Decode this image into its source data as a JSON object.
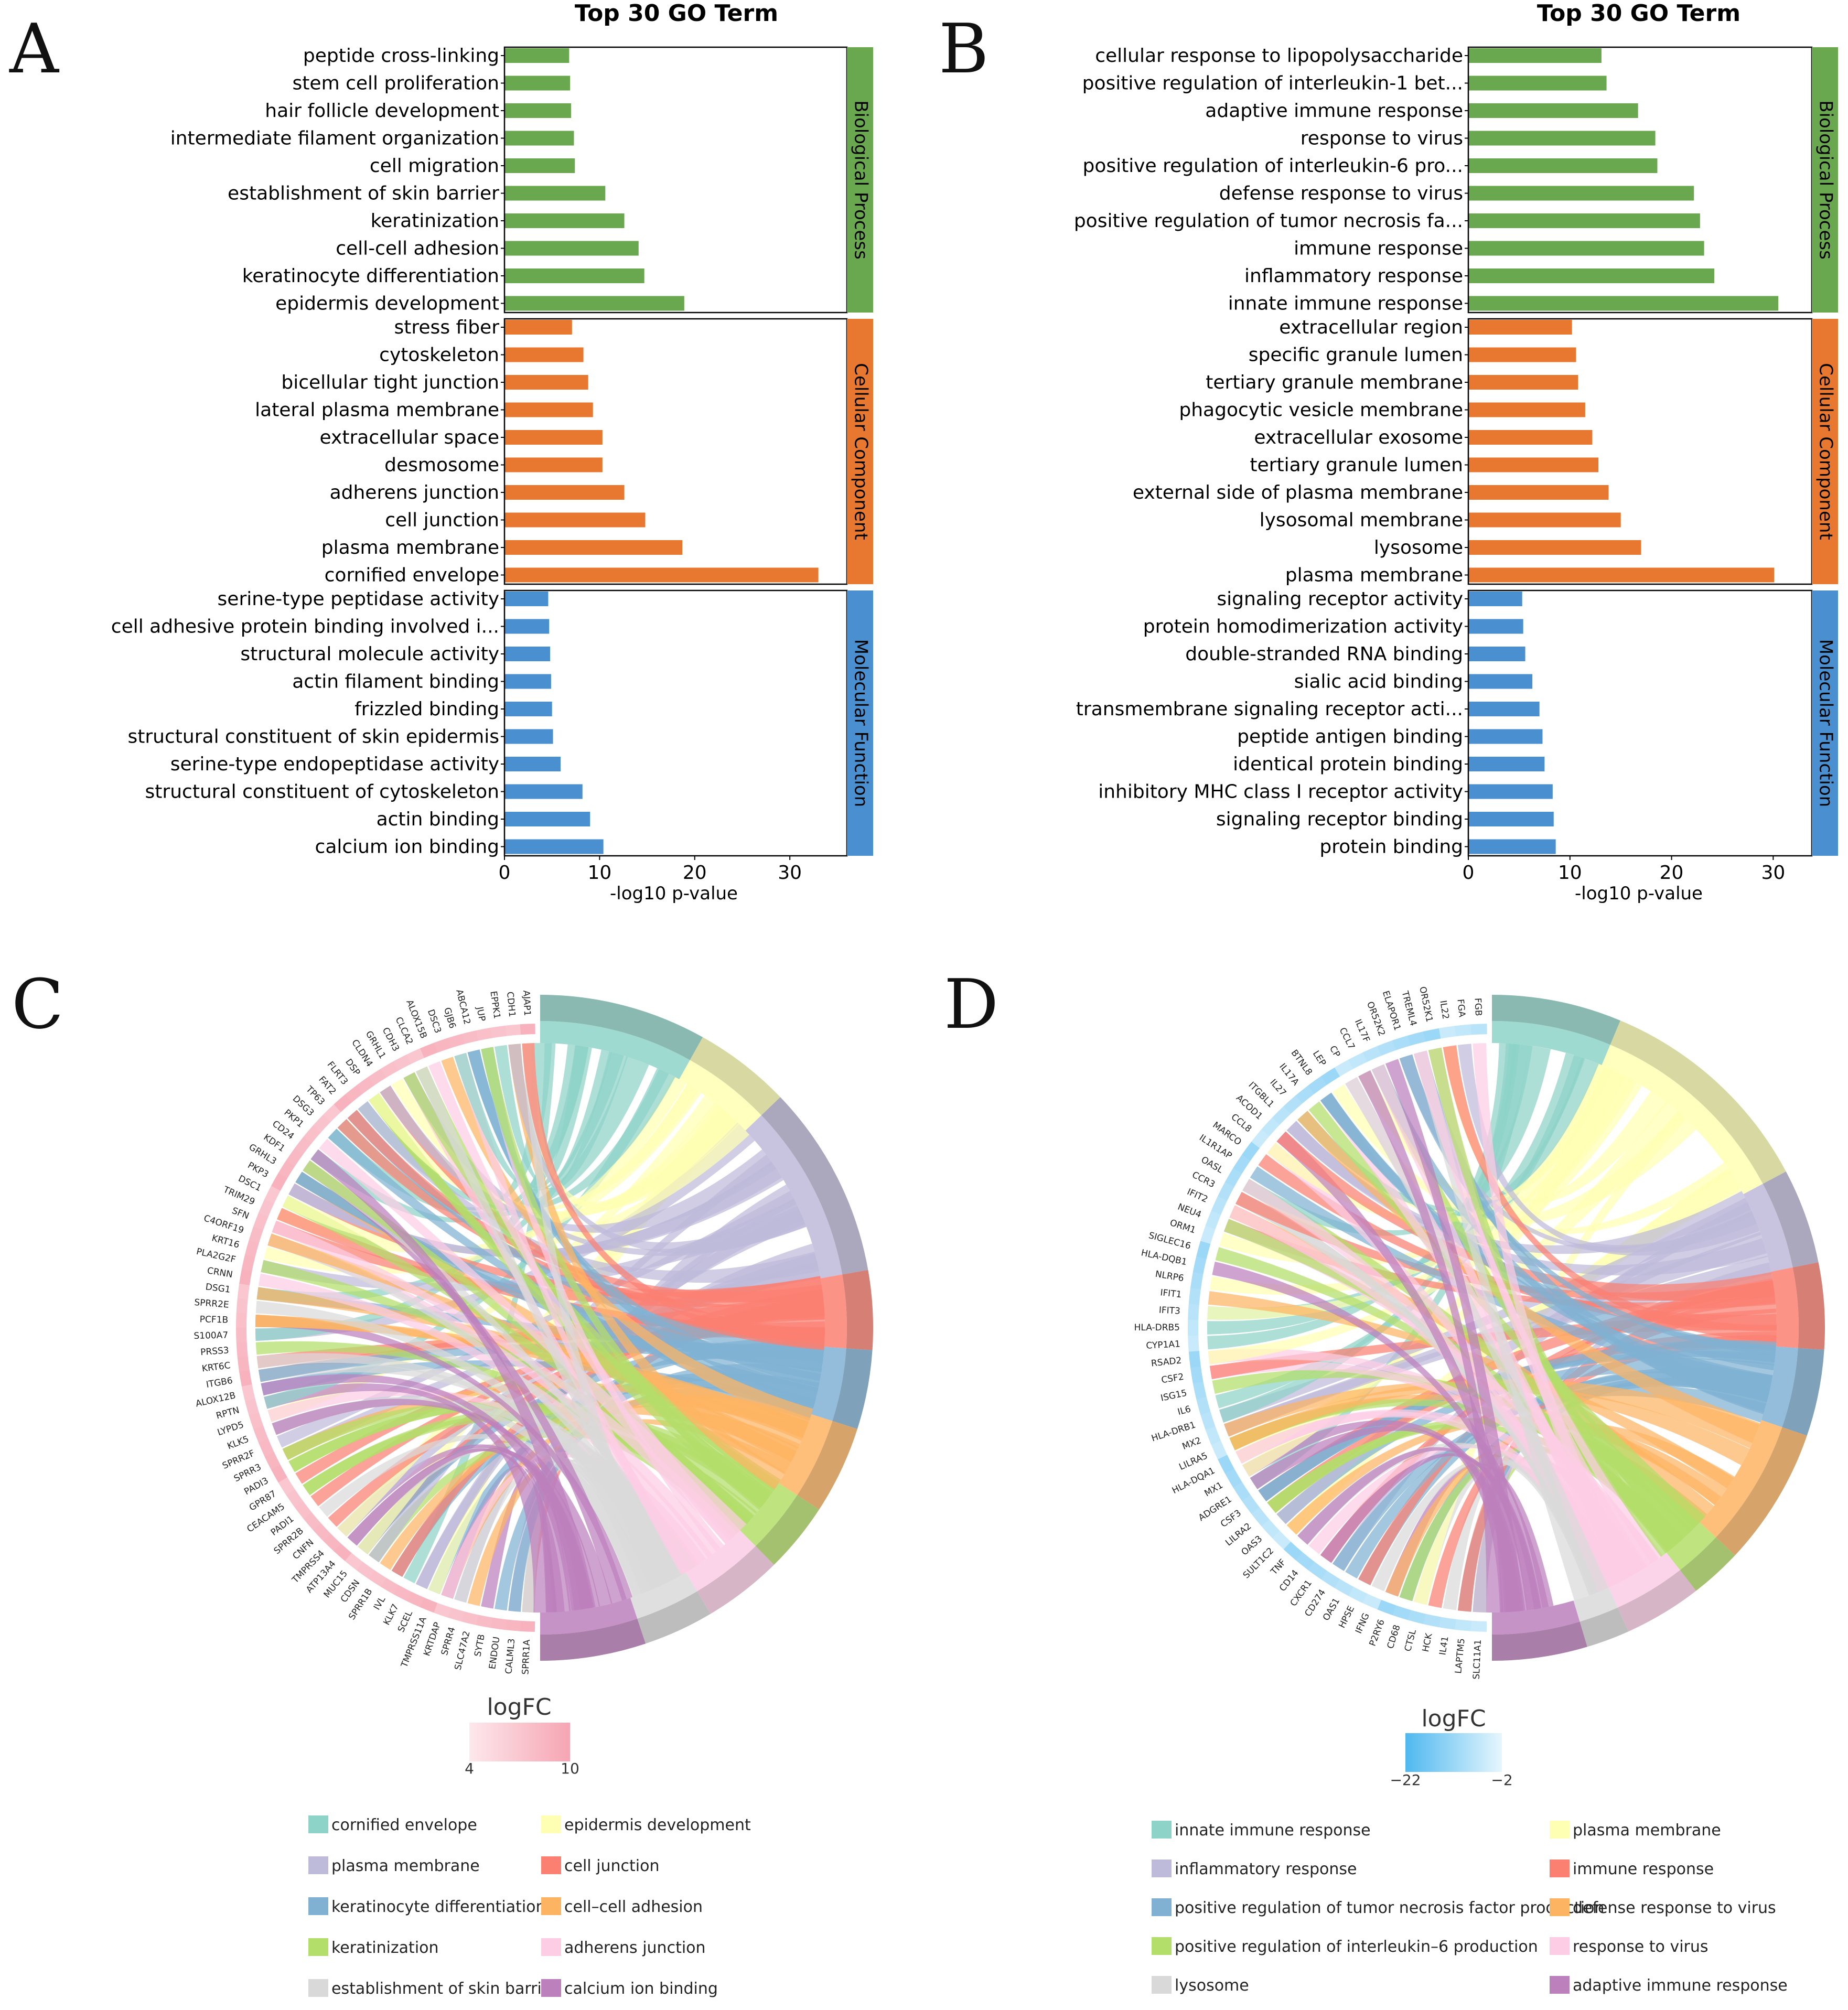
{
  "panel_labels": [
    "A",
    "B",
    "C",
    "D"
  ],
  "chart_data": [
    {
      "id": "A",
      "type": "bar",
      "orientation": "horizontal",
      "title": "Top 30 GO Term",
      "xlabel": "-log10 p-value",
      "xlim": [
        0,
        36
      ],
      "xticks": [
        0,
        10,
        20,
        30
      ],
      "colors": {
        "Biological Process": "#6aa84f",
        "Cellular Component": "#e8782f",
        "Molecular Function": "#4a8fd0"
      },
      "groups": [
        {
          "name": "Biological Process",
          "terms": [
            {
              "term": "peptide cross-linking",
              "value": 6.8
            },
            {
              "term": "stem cell proliferation",
              "value": 6.9
            },
            {
              "term": "hair follicle development",
              "value": 7.0
            },
            {
              "term": "intermediate filament organization",
              "value": 7.3
            },
            {
              "term": "cell migration",
              "value": 7.4
            },
            {
              "term": "establishment of skin barrier",
              "value": 10.6
            },
            {
              "term": "keratinization",
              "value": 12.6
            },
            {
              "term": "cell-cell adhesion",
              "value": 14.1
            },
            {
              "term": "keratinocyte differentiation",
              "value": 14.7
            },
            {
              "term": "epidermis development",
              "value": 18.9
            }
          ]
        },
        {
          "name": "Cellular Component",
          "terms": [
            {
              "term": "stress fiber",
              "value": 7.1
            },
            {
              "term": "cytoskeleton",
              "value": 8.3
            },
            {
              "term": "bicellular tight junction",
              "value": 8.8
            },
            {
              "term": "lateral plasma membrane",
              "value": 9.3
            },
            {
              "term": "extracellular space",
              "value": 10.3
            },
            {
              "term": "desmosome",
              "value": 10.3
            },
            {
              "term": "adherens junction",
              "value": 12.6
            },
            {
              "term": "cell junction",
              "value": 14.8
            },
            {
              "term": "plasma membrane",
              "value": 18.7
            },
            {
              "term": "cornified envelope",
              "value": 33.0
            }
          ]
        },
        {
          "name": "Molecular Function",
          "terms": [
            {
              "term": "serine-type peptidase activity",
              "value": 4.6
            },
            {
              "term": "cell adhesive protein binding involved i...",
              "value": 4.7
            },
            {
              "term": "structural molecule activity",
              "value": 4.8
            },
            {
              "term": "actin filament binding",
              "value": 4.9
            },
            {
              "term": "frizzled binding",
              "value": 5.0
            },
            {
              "term": "structural constituent of skin epidermis",
              "value": 5.1
            },
            {
              "term": "serine-type endopeptidase activity",
              "value": 5.9
            },
            {
              "term": "structural constituent of cytoskeleton",
              "value": 8.2
            },
            {
              "term": "actin binding",
              "value": 9.0
            },
            {
              "term": "calcium ion binding",
              "value": 10.4
            }
          ]
        }
      ]
    },
    {
      "id": "B",
      "type": "bar",
      "orientation": "horizontal",
      "title": "Top 30 GO Term",
      "xlabel": "-log10 p-value",
      "xlim": [
        0,
        33.8
      ],
      "xticks": [
        0,
        10,
        20,
        30
      ],
      "colors": {
        "Biological Process": "#6aa84f",
        "Cellular Component": "#e8782f",
        "Molecular Function": "#4a8fd0"
      },
      "groups": [
        {
          "name": "Biological Process",
          "terms": [
            {
              "term": "cellular response to lipopolysaccharide",
              "value": 13.1
            },
            {
              "term": "positive regulation of interleukin-1 bet...",
              "value": 13.6
            },
            {
              "term": "adaptive immune response",
              "value": 16.7
            },
            {
              "term": "response to virus",
              "value": 18.4
            },
            {
              "term": "positive regulation of interleukin-6 pro...",
              "value": 18.6
            },
            {
              "term": "defense response to virus",
              "value": 22.2
            },
            {
              "term": "positive regulation of tumor necrosis fa...",
              "value": 22.8
            },
            {
              "term": "immune response",
              "value": 23.2
            },
            {
              "term": "inflammatory response",
              "value": 24.2
            },
            {
              "term": "innate immune response",
              "value": 30.5
            }
          ]
        },
        {
          "name": "Cellular Component",
          "terms": [
            {
              "term": "extracellular region",
              "value": 10.2
            },
            {
              "term": "specific granule lumen",
              "value": 10.6
            },
            {
              "term": "tertiary granule membrane",
              "value": 10.8
            },
            {
              "term": "phagocytic vesicle membrane",
              "value": 11.5
            },
            {
              "term": "extracellular exosome",
              "value": 12.2
            },
            {
              "term": "tertiary granule lumen",
              "value": 12.8
            },
            {
              "term": "external side of plasma membrane",
              "value": 13.8
            },
            {
              "term": "lysosomal membrane",
              "value": 15.0
            },
            {
              "term": "lysosome",
              "value": 17.0
            },
            {
              "term": "plasma membrane",
              "value": 30.1
            }
          ]
        },
        {
          "name": "Molecular Function",
          "terms": [
            {
              "term": "signaling receptor activity",
              "value": 5.3
            },
            {
              "term": "protein homodimerization activity",
              "value": 5.4
            },
            {
              "term": "double-stranded RNA binding",
              "value": 5.6
            },
            {
              "term": "sialic acid binding",
              "value": 6.3
            },
            {
              "term": "transmembrane signaling receptor acti...",
              "value": 7.0
            },
            {
              "term": "peptide antigen binding",
              "value": 7.3
            },
            {
              "term": "identical protein binding",
              "value": 7.5
            },
            {
              "term": "inhibitory MHC class I receptor activity",
              "value": 8.3
            },
            {
              "term": "signaling receptor binding",
              "value": 8.4
            },
            {
              "term": "protein binding",
              "value": 8.6
            }
          ]
        }
      ]
    },
    {
      "id": "C",
      "type": "chord",
      "genes": [
        "SPRR1A",
        "CALML3",
        "ENDOU",
        "SYTB",
        "SLC47A2",
        "SPRR4",
        "KRTDAP",
        "TMPRSS11A",
        "SCEL",
        "KLK7",
        "IVL",
        "SPRR1B",
        "CDSN",
        "MUC15",
        "ATP13A4",
        "TMPRSS4",
        "CNFN",
        "SPRR2B",
        "PADI1",
        "CEACAM5",
        "GPR87",
        "PADI3",
        "SPRR3",
        "SPRR2F",
        "KLK5",
        "LYPD5",
        "RPTN",
        "ALOX12B",
        "ITGB6",
        "KRT6C",
        "PRSS3",
        "S100A7",
        "PCF1B",
        "SPRR2E",
        "DSG1",
        "CRNN",
        "PLA2G2F",
        "KRT16",
        "C4ORF19",
        "SFN",
        "TRIM29",
        "DSC1",
        "PKP3",
        "GRHL3",
        "KDF1",
        "CD24",
        "PKP1",
        "DSG3",
        "TP63",
        "FAT2",
        "FLRT3",
        "DSP",
        "CLDN4",
        "GRHL1",
        "CDH3",
        "CLCA2",
        "ALOX15B",
        "DSC3",
        "GJB6",
        "ABCA12",
        "JUP",
        "EPPK1",
        "CDH1",
        "AJAP1"
      ],
      "term_colors": [
        "#8dd3c7",
        "#ffffb3",
        "#bebada",
        "#fb8072",
        "#80b1d3",
        "#fdb462",
        "#b3de69",
        "#fccde5",
        "#d9d9d9",
        "#bc80bd"
      ],
      "term_fractions": [
        0.19,
        0.11,
        0.22,
        0.09,
        0.09,
        0.1,
        0.08,
        0.09,
        0.08,
        0.12
      ],
      "logfc": {
        "label": "logFC",
        "min": "4",
        "max": "10",
        "color_low": "#fde8ec",
        "color_high": "#f6a5b3"
      },
      "legend": [
        "cornified envelope",
        "epidermis development",
        "plasma membrane",
        "cell junction",
        "keratinocyte differentiation",
        "cell–cell adhesion",
        "keratinization",
        "adherens junction",
        "establishment of skin barrier",
        "calcium ion binding"
      ]
    },
    {
      "id": "D",
      "type": "chord",
      "genes": [
        "SLC11A1",
        "LAPTM5",
        "IL41",
        "HCK",
        "CTSL",
        "CD68",
        "P2RY6",
        "IFNG",
        "HPSE",
        "OAS1",
        "CD274",
        "CXCR1",
        "CD14",
        "TNF",
        "SULT1C2",
        "OAS3",
        "LILRA2",
        "CSF3",
        "ADGRE1",
        "MX1",
        "HLA-DQA1",
        "LILRA5",
        "MX2",
        "HLA-DRB1",
        "IL6",
        "ISG15",
        "CSF2",
        "RSAD2",
        "CYP1A1",
        "HLA-DRB5",
        "IFIT3",
        "IFIT1",
        "NLRP6",
        "HLA-DQB1",
        "SIGLEC16",
        "ORM1",
        "NEU4",
        "IFIT2",
        "CCR3",
        "OASL",
        "IL1R1AP",
        "MARCO",
        "CCL8",
        "ACOD1",
        "ITGBL1",
        "IL27",
        "IL17A",
        "BTNL8",
        "LEP",
        "CP",
        "CCL7",
        "IL17F",
        "OR52K2",
        "ELAPOR1",
        "TREML4",
        "OR52K1",
        "IL22",
        "FGA",
        "FGB"
      ],
      "term_colors": [
        "#8dd3c7",
        "#ffffb3",
        "#bebada",
        "#fb8072",
        "#80b1d3",
        "#fdb462",
        "#b3de69",
        "#fccde5",
        "#d9d9d9",
        "#bc80bd"
      ],
      "term_fractions": [
        0.15,
        0.26,
        0.11,
        0.1,
        0.1,
        0.16,
        0.06,
        0.09,
        0.05,
        0.11
      ],
      "logfc": {
        "label": "logFC",
        "min": "−22",
        "max": "−2",
        "color_low": "#4fb8ef",
        "color_high": "#e6f6fd"
      },
      "legend": [
        "innate immune response",
        "plasma membrane",
        "inflammatory response",
        "immune response",
        "positive regulation of tumor necrosis factor production",
        "defense response to virus",
        "positive regulation of interleukin–6 production",
        "response to virus",
        "lysosome",
        "adaptive immune response"
      ]
    }
  ]
}
